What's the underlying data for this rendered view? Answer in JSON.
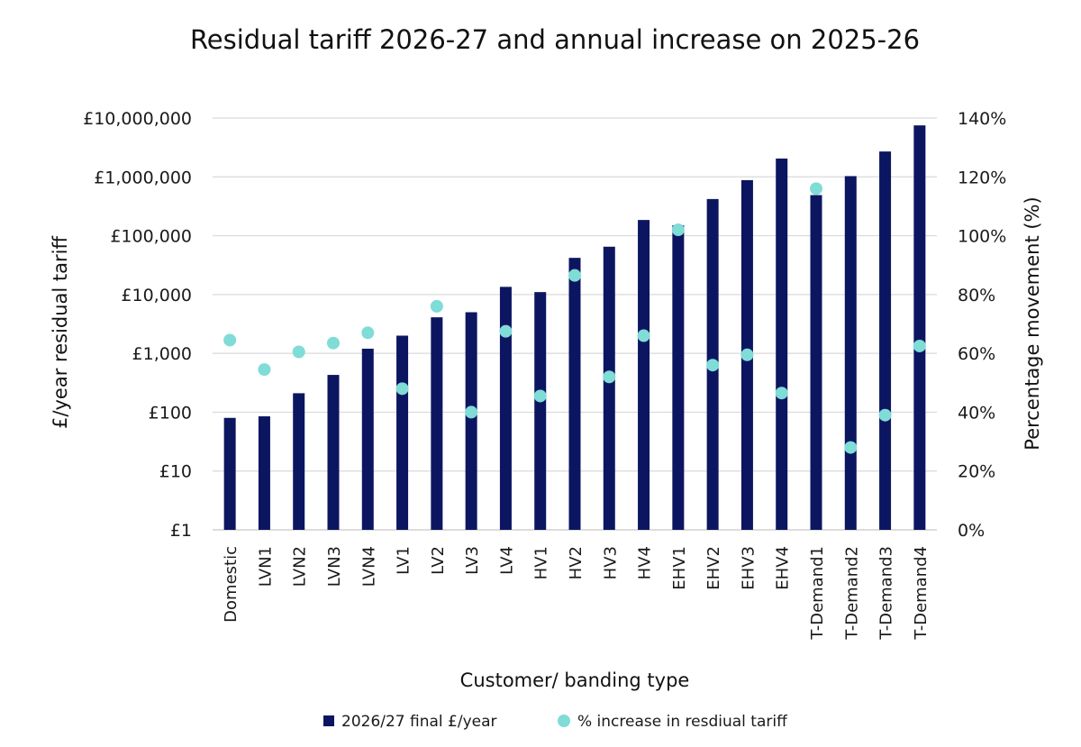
{
  "chart_data": {
    "type": "bar",
    "title": "Residual tariff 2026-27 and annual increase on 2025-26",
    "xlabel": "Customer/ banding type",
    "ylabel": "£/year residual tariff",
    "y2label": "Percentage movement (%)",
    "y_scale": "log",
    "ylim": [
      1,
      10000000
    ],
    "y2lim": [
      0,
      140
    ],
    "y_ticks": [
      1,
      10,
      100,
      1000,
      10000,
      100000,
      1000000,
      10000000
    ],
    "y_tick_labels": [
      "£1",
      "£10",
      "£100",
      "£1,000",
      "£10,000",
      "£100,000",
      "£1,000,000",
      "£10,000,000"
    ],
    "y2_ticks": [
      0,
      20,
      40,
      60,
      80,
      100,
      120,
      140
    ],
    "y2_tick_labels": [
      "0%",
      "20%",
      "40%",
      "60%",
      "80%",
      "100%",
      "120%",
      "140%"
    ],
    "grid": true,
    "legend_position": "bottom",
    "categories": [
      "Domestic",
      "LVN1",
      "LVN2",
      "LVN3",
      "LVN4",
      "LV1",
      "LV2",
      "LV3",
      "LV4",
      "HV1",
      "HV2",
      "HV3",
      "HV4",
      "EHV1",
      "EHV2",
      "EHV3",
      "EHV4",
      "T-Demand1",
      "T-Demand2",
      "T-Demand3",
      "T-Demand4"
    ],
    "series": [
      {
        "name": "2026/27 final £/year",
        "type": "bar",
        "axis": "left",
        "color": "#0c1660",
        "values": [
          80,
          85,
          210,
          430,
          1200,
          2000,
          4100,
          5000,
          13500,
          11000,
          42000,
          65000,
          185000,
          150000,
          420000,
          880000,
          2050000,
          490000,
          1030000,
          2700000,
          7500000
        ]
      },
      {
        "name": "% increase in resdiual tariff",
        "type": "scatter",
        "axis": "right",
        "color": "#7fdcd6",
        "values": [
          64.5,
          54.5,
          60.5,
          63.5,
          67,
          48,
          76,
          40,
          67.5,
          45.5,
          86.5,
          52,
          66,
          102,
          56,
          59.5,
          46.5,
          116,
          28,
          39,
          62.5
        ]
      }
    ]
  }
}
